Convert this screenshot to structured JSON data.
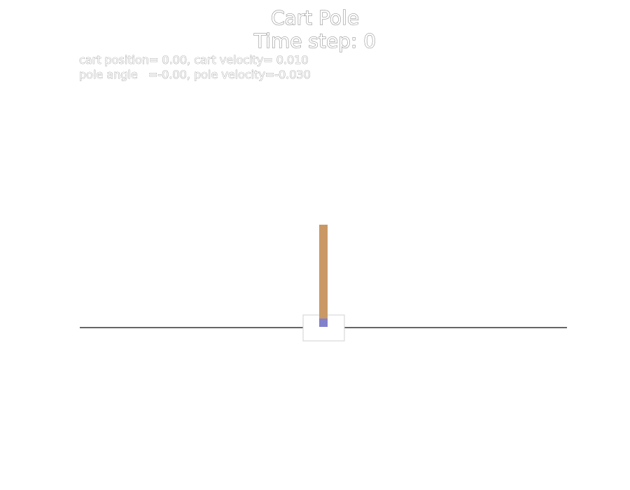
{
  "header": {
    "title": "Cart Pole",
    "time_step_label": "Time step: 0"
  },
  "state": {
    "line1": "cart position= 0.00, cart velocity= 0.010",
    "line2": "pole angle   =-0.00, pole velocity=-0.030",
    "cart_position": 0.0,
    "cart_velocity": 0.01,
    "pole_angle": -0.0,
    "pole_velocity": -0.03
  },
  "colors": {
    "track": "#333333",
    "cart_fill": "#ffffff",
    "cart_outline": "#d0d0d0",
    "pole": "#ca9865",
    "axle": "#8181cc",
    "text_outline": "#7a7a7a"
  }
}
